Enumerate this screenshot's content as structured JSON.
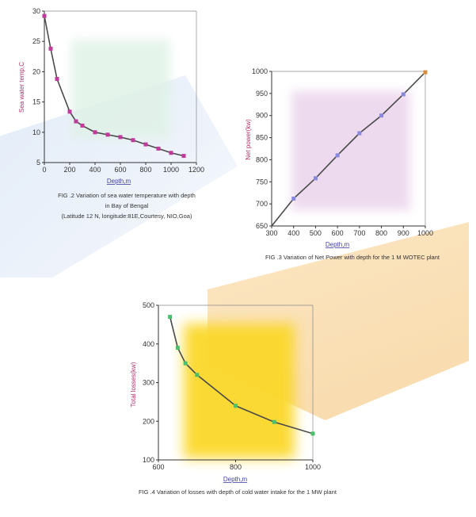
{
  "colors": {
    "line": "#4a4a4a",
    "marker_fig2": "#c2399c",
    "marker_fig3": "#8888dd",
    "marker_fig3_last": "#d98c3a",
    "marker_fig4": "#4cbf6a",
    "xlabel": "#3f3fa0",
    "ylabel": "#b0306a"
  },
  "captions": {
    "fig2_line1": "FIG .2 Variation of sea water temperature with depth",
    "fig2_line2": "in Bay of Bengal",
    "fig2_line3": "(Latitude 12 N, longitude:81E,Courtesy, NIO,Goa)",
    "fig3": "FIG .3 Variation of Net Power with depth for the 1 M WOTEC plant",
    "fig4": "FIG .4 Variation of losses with depth of cold water intake for the 1 MW plant"
  },
  "chart_data": [
    {
      "id": "fig2",
      "type": "line",
      "xlabel": "Depth,m",
      "ylabel": "Sea water temp,C",
      "xlim": [
        0,
        1200
      ],
      "ylim": [
        5,
        30
      ],
      "xticks": [
        0,
        200,
        400,
        600,
        800,
        1000,
        1200
      ],
      "yticks": [
        5,
        10,
        15,
        20,
        25,
        30
      ],
      "x": [
        0,
        50,
        100,
        200,
        250,
        300,
        400,
        500,
        600,
        700,
        800,
        900,
        1000,
        1100
      ],
      "y": [
        29.2,
        23.8,
        18.8,
        13.4,
        11.8,
        11.1,
        10.0,
        9.6,
        9.2,
        8.7,
        8.0,
        7.3,
        6.6,
        6.1
      ]
    },
    {
      "id": "fig3",
      "type": "line",
      "xlabel": "Depth,m",
      "ylabel": "Net power(kw)",
      "xlim": [
        300,
        1000
      ],
      "ylim": [
        650,
        1000
      ],
      "xticks": [
        300,
        400,
        500,
        600,
        700,
        800,
        900,
        1000
      ],
      "yticks": [
        650,
        700,
        750,
        800,
        850,
        900,
        950,
        1000
      ],
      "x": [
        300,
        400,
        500,
        600,
        700,
        800,
        900,
        1000
      ],
      "y": [
        650,
        712,
        758,
        810,
        860,
        900,
        948,
        998
      ]
    },
    {
      "id": "fig4",
      "type": "line",
      "xlabel": "Depth,m",
      "ylabel": "Total losses(kw)",
      "xlim": [
        600,
        1000
      ],
      "ylim": [
        100,
        500
      ],
      "xticks": [
        600,
        800,
        1000
      ],
      "yticks": [
        100,
        200,
        300,
        400,
        500
      ],
      "x": [
        630,
        650,
        670,
        700,
        800,
        900,
        1000
      ],
      "y": [
        470,
        390,
        350,
        320,
        240,
        198,
        168
      ]
    }
  ]
}
